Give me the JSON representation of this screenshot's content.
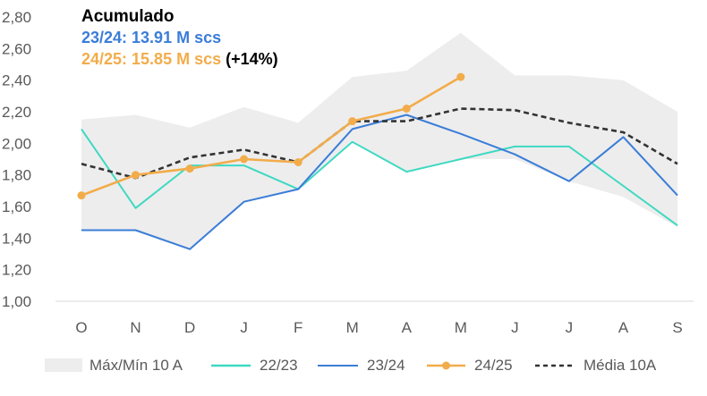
{
  "chart_data": {
    "type": "line",
    "categories": [
      "O",
      "N",
      "D",
      "J",
      "F",
      "M",
      "A",
      "M",
      "J",
      "J",
      "A",
      "S"
    ],
    "ylim": [
      1.0,
      2.8
    ],
    "yticks": [
      "1,00",
      "1,20",
      "1,40",
      "1,60",
      "1,80",
      "2,00",
      "2,20",
      "2,40",
      "2,60",
      "2,80"
    ],
    "ytick_values": [
      1.0,
      1.2,
      1.4,
      1.6,
      1.8,
      2.0,
      2.2,
      2.4,
      2.6,
      2.8
    ],
    "band": {
      "name": "Máx/Mín 10 A",
      "color": "#ededed",
      "max": [
        2.15,
        2.18,
        2.1,
        2.23,
        2.13,
        2.42,
        2.46,
        2.7,
        2.43,
        2.43,
        2.4,
        2.2
      ],
      "min": [
        1.45,
        1.45,
        1.33,
        1.63,
        1.71,
        2.02,
        1.82,
        1.9,
        1.9,
        1.76,
        1.66,
        1.47
      ]
    },
    "series": [
      {
        "name": "22/23",
        "color": "#3fd9c2",
        "style": "solid",
        "values": [
          2.09,
          1.59,
          1.86,
          1.86,
          1.71,
          2.01,
          1.82,
          1.9,
          1.98,
          1.98,
          1.73,
          1.48
        ]
      },
      {
        "name": "23/24",
        "color": "#3b7dd8",
        "style": "solid",
        "values": [
          1.45,
          1.45,
          1.33,
          1.63,
          1.71,
          2.09,
          2.18,
          2.06,
          1.93,
          1.76,
          2.04,
          1.67
        ]
      },
      {
        "name": "24/25",
        "color": "#f2ac4a",
        "style": "markers",
        "values": [
          1.67,
          1.8,
          1.84,
          1.9,
          1.88,
          2.14,
          2.22,
          2.42,
          null,
          null,
          null,
          null
        ]
      },
      {
        "name": "Média 10A",
        "color": "#333333",
        "style": "dashed",
        "values": [
          1.87,
          1.78,
          1.91,
          1.96,
          1.88,
          2.14,
          2.14,
          2.22,
          2.21,
          2.13,
          2.07,
          1.87
        ]
      }
    ],
    "annotation": {
      "title": "Acumulado",
      "line1": "23/24: 13.91 M scs",
      "line1_color": "#3b7dd8",
      "line2": "24/25: 15.85 M scs",
      "line2_color": "#f2ac4a",
      "line2_suffix": "(+14%)"
    },
    "legend_position": "bottom"
  }
}
